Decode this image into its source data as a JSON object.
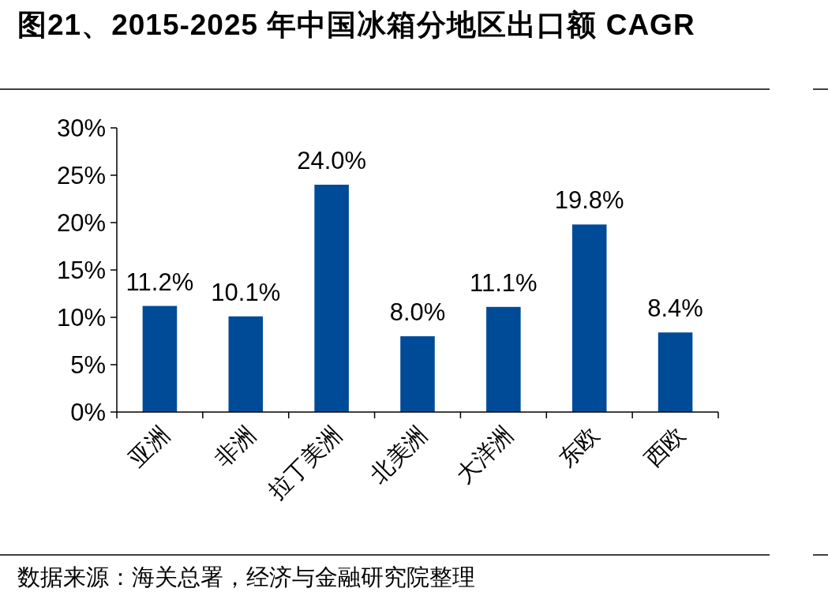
{
  "chart_data": {
    "type": "bar",
    "title": "图21、2015-2025 年中国冰箱分地区出口额 CAGR",
    "categories": [
      "亚洲",
      "非洲",
      "拉丁美洲",
      "北美洲",
      "大洋洲",
      "东欧",
      "西欧"
    ],
    "values": [
      11.2,
      10.1,
      24.0,
      8.0,
      11.1,
      19.8,
      8.4
    ],
    "value_labels": [
      "11.2%",
      "10.1%",
      "24.0%",
      "8.0%",
      "11.1%",
      "19.8%",
      "8.4%"
    ],
    "color": "#004b97",
    "ylim": [
      0,
      30
    ],
    "yticks": [
      {
        "value": 0,
        "label": "0%"
      },
      {
        "value": 5,
        "label": "5%"
      },
      {
        "value": 10,
        "label": "10%"
      },
      {
        "value": 15,
        "label": "15%"
      },
      {
        "value": 20,
        "label": "20%"
      },
      {
        "value": 25,
        "label": "25%"
      },
      {
        "value": 30,
        "label": "30%"
      }
    ],
    "grid": false,
    "annotations": [
      "数据来源：海关总署，经济与金融研究院整理"
    ]
  }
}
